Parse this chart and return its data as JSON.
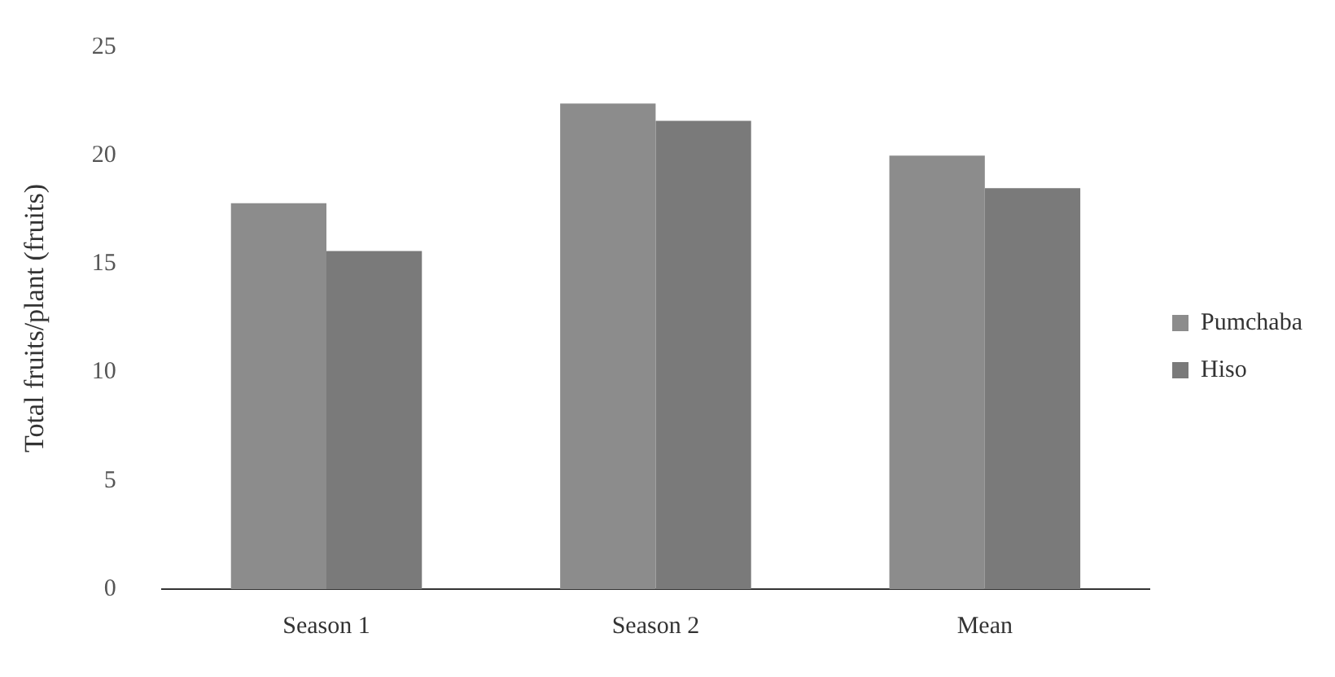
{
  "chart_data": {
    "type": "bar",
    "ylabel": "Total fruits/plant (fruits)",
    "categories": [
      "Season 1",
      "Season 2",
      "Mean"
    ],
    "series": [
      {
        "name": "Pumchaba",
        "color": "#8c8c8c",
        "values": [
          17.8,
          22.4,
          20.0
        ]
      },
      {
        "name": "Hiso",
        "color": "#7a7a7a",
        "values": [
          15.6,
          21.6,
          18.5
        ]
      }
    ],
    "ylim": [
      0,
      25
    ],
    "yticks": [
      0,
      5,
      10,
      15,
      20,
      25
    ],
    "legend": "right"
  }
}
